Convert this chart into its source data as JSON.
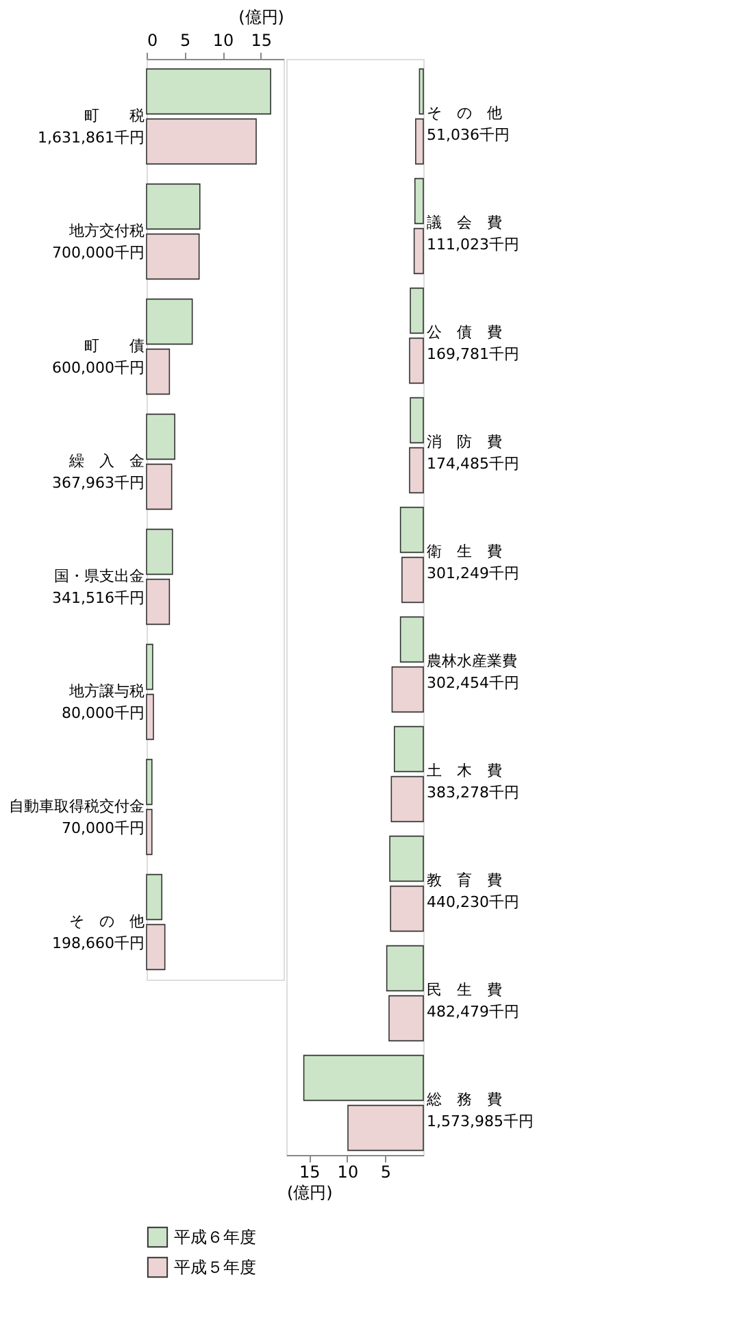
{
  "chart_data": [
    {
      "type": "bar",
      "orientation": "horizontal",
      "xlabel": "(億円)",
      "categories": [
        "町　　税\n1,631,861千円",
        "地方交付税\n700,000千円",
        "町　　債\n600,000千円",
        "繰　入　金\n367,963千円",
        "国・県支出金\n341,516千円",
        "地方譲与税\n80,000千円",
        "自動車取得税交付金\n70,000千円",
        "そ　の　他\n198,660千円"
      ],
      "series": [
        {
          "name": "平成６年度",
          "color": "#cce5c8",
          "values": [
            16.3,
            7.0,
            6.0,
            3.7,
            3.4,
            0.8,
            0.7,
            2.0
          ]
        },
        {
          "name": "平成５年度",
          "color": "#ecd4d4",
          "values": [
            14.4,
            6.9,
            3.0,
            3.3,
            3.0,
            0.9,
            0.7,
            2.4
          ]
        }
      ],
      "xlim": [
        0,
        18
      ],
      "xticks": [
        0,
        5,
        10,
        15
      ],
      "grid": false,
      "legend": "bottom left"
    },
    {
      "type": "bar",
      "orientation": "horizontal",
      "xlabel": "(億円)",
      "categories": [
        "そ　の　他\n51,036千円",
        "議　会　費\n111,023千円",
        "公　債　費\n169,781千円",
        "消　防　費\n174,485千円",
        "衛　生　費\n301,249千円",
        "農林水産業費\n302,454千円",
        "土　木　費\n383,278千円",
        "教　育　費\n440,230千円",
        "民　生　費\n482,479千円",
        "総　務　費\n1,573,985千円"
      ],
      "series": [
        {
          "name": "平成６年度",
          "color": "#cce5c8",
          "values": [
            0.5,
            1.1,
            1.7,
            1.7,
            3.0,
            3.0,
            3.8,
            4.4,
            4.8,
            15.7
          ]
        },
        {
          "name": "平成５年度",
          "color": "#ecd4d4",
          "values": [
            1.0,
            1.2,
            1.8,
            1.8,
            2.8,
            4.1,
            4.2,
            4.3,
            4.5,
            9.9
          ]
        }
      ],
      "xlim": [
        18,
        0
      ],
      "xticks": [
        15,
        10,
        5
      ],
      "grid": false,
      "legend": false
    }
  ]
}
